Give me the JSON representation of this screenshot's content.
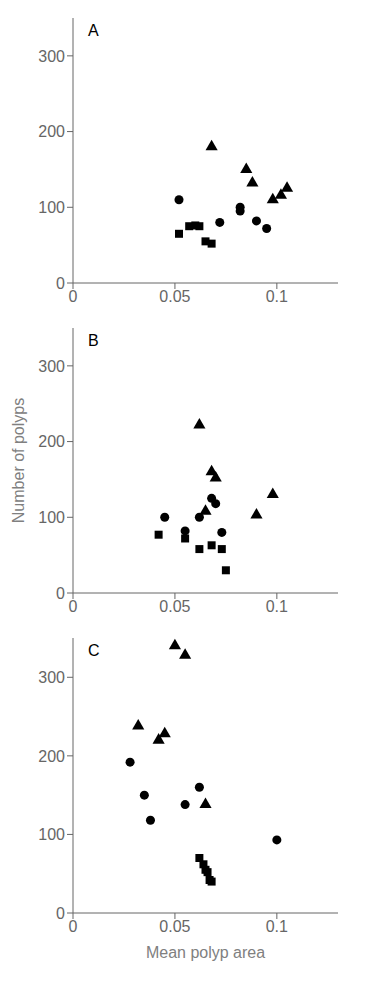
{
  "chart_data": [
    {
      "type": "scatter",
      "title": "A",
      "xlim": [
        0,
        0.13
      ],
      "ylim": [
        0,
        350
      ],
      "xticks": [
        0,
        0.05,
        0.1
      ],
      "yticks": [
        0,
        100,
        200,
        300
      ],
      "series": [
        {
          "marker": "square",
          "color": "#000000",
          "values": [
            [
              0.052,
              65
            ],
            [
              0.057,
              75
            ],
            [
              0.06,
              76
            ],
            [
              0.062,
              75
            ],
            [
              0.065,
              55
            ],
            [
              0.068,
              52
            ]
          ]
        },
        {
          "marker": "circle",
          "color": "#000000",
          "values": [
            [
              0.052,
              110
            ],
            [
              0.072,
              80
            ],
            [
              0.082,
              95
            ],
            [
              0.082,
              100
            ],
            [
              0.09,
              82
            ],
            [
              0.095,
              72
            ]
          ]
        },
        {
          "marker": "triangle",
          "color": "#000000",
          "values": [
            [
              0.068,
              180
            ],
            [
              0.085,
              150
            ],
            [
              0.088,
              132
            ],
            [
              0.098,
              110
            ],
            [
              0.102,
              116
            ],
            [
              0.105,
              125
            ]
          ]
        }
      ]
    },
    {
      "type": "scatter",
      "title": "B",
      "ylabel": "Number of polyps",
      "xlim": [
        0,
        0.13
      ],
      "ylim": [
        0,
        350
      ],
      "xticks": [
        0,
        0.05,
        0.1
      ],
      "yticks": [
        0,
        100,
        200,
        300
      ],
      "series": [
        {
          "marker": "square",
          "color": "#000000",
          "values": [
            [
              0.042,
              77
            ],
            [
              0.055,
              72
            ],
            [
              0.062,
              58
            ],
            [
              0.068,
              63
            ],
            [
              0.073,
              58
            ],
            [
              0.075,
              30
            ]
          ]
        },
        {
          "marker": "circle",
          "color": "#000000",
          "values": [
            [
              0.045,
              100
            ],
            [
              0.055,
              82
            ],
            [
              0.062,
              100
            ],
            [
              0.068,
              125
            ],
            [
              0.07,
              118
            ],
            [
              0.073,
              80
            ]
          ]
        },
        {
          "marker": "triangle",
          "color": "#000000",
          "values": [
            [
              0.062,
              222
            ],
            [
              0.065,
              108
            ],
            [
              0.068,
              160
            ],
            [
              0.07,
              152
            ],
            [
              0.09,
              103
            ],
            [
              0.098,
              130
            ]
          ]
        }
      ]
    },
    {
      "type": "scatter",
      "title": "C",
      "xlabel": "Mean polyp area",
      "xlim": [
        0,
        0.13
      ],
      "ylim": [
        0,
        350
      ],
      "xticks": [
        0,
        0.05,
        0.1
      ],
      "yticks": [
        0,
        100,
        200,
        300
      ],
      "series": [
        {
          "marker": "square",
          "color": "#000000",
          "values": [
            [
              0.062,
              70
            ],
            [
              0.064,
              62
            ],
            [
              0.065,
              55
            ],
            [
              0.066,
              52
            ],
            [
              0.067,
              42
            ],
            [
              0.068,
              40
            ]
          ]
        },
        {
          "marker": "circle",
          "color": "#000000",
          "values": [
            [
              0.028,
              192
            ],
            [
              0.035,
              150
            ],
            [
              0.038,
              118
            ],
            [
              0.055,
              138
            ],
            [
              0.062,
              160
            ],
            [
              0.1,
              93
            ]
          ]
        },
        {
          "marker": "triangle",
          "color": "#000000",
          "values": [
            [
              0.032,
              238
            ],
            [
              0.042,
              220
            ],
            [
              0.045,
              228
            ],
            [
              0.05,
              340
            ],
            [
              0.055,
              328
            ],
            [
              0.065,
              138
            ]
          ]
        }
      ]
    }
  ]
}
